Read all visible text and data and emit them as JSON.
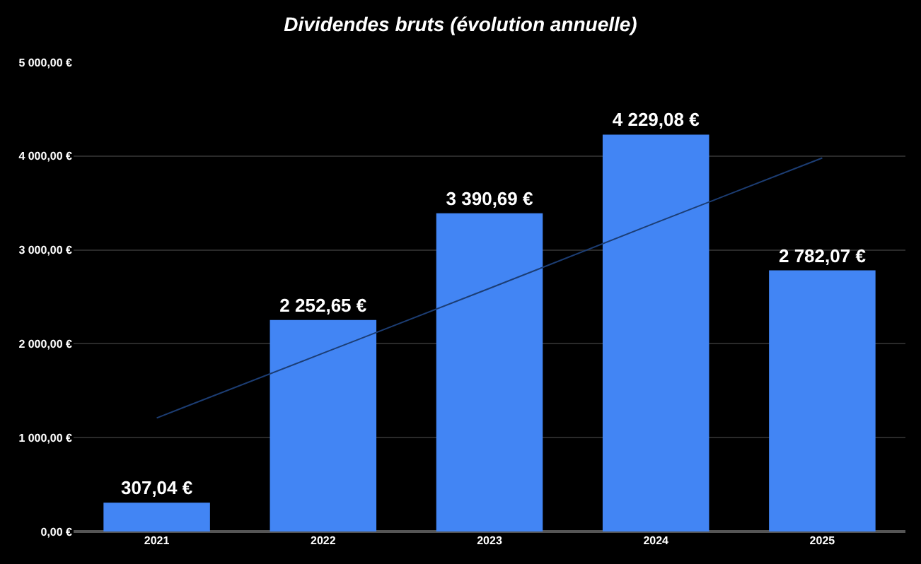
{
  "chart_data": {
    "type": "bar",
    "title": "Dividendes bruts (évolution annuelle)",
    "categories": [
      "2021",
      "2022",
      "2023",
      "2024",
      "2025"
    ],
    "series": [
      {
        "color": "#4285f4",
        "values": [
          307.04,
          2252.65,
          3390.69,
          4229.08,
          2782.07
        ],
        "value_labels": [
          "307,04 €",
          "2 252,65 €",
          "3 390,69 €",
          "4 229,08 €",
          "2 782,07 €"
        ]
      },
      {
        "type": "line",
        "color": "#1c3d73",
        "values": [
          1210,
          1900,
          2590,
          3290,
          3980
        ]
      }
    ],
    "ylim": [
      0,
      5000
    ],
    "yticks": [
      {
        "value": 0,
        "label": "0,00 €"
      },
      {
        "value": 1000,
        "label": "1 000,00 €"
      },
      {
        "value": 2000,
        "label": "2 000,00 €"
      },
      {
        "value": 3000,
        "label": "3 000,00 €"
      },
      {
        "value": 4000,
        "label": "4 000,00 €"
      },
      {
        "value": 5000,
        "label": "5 000,00 €"
      }
    ],
    "grid": "y"
  }
}
